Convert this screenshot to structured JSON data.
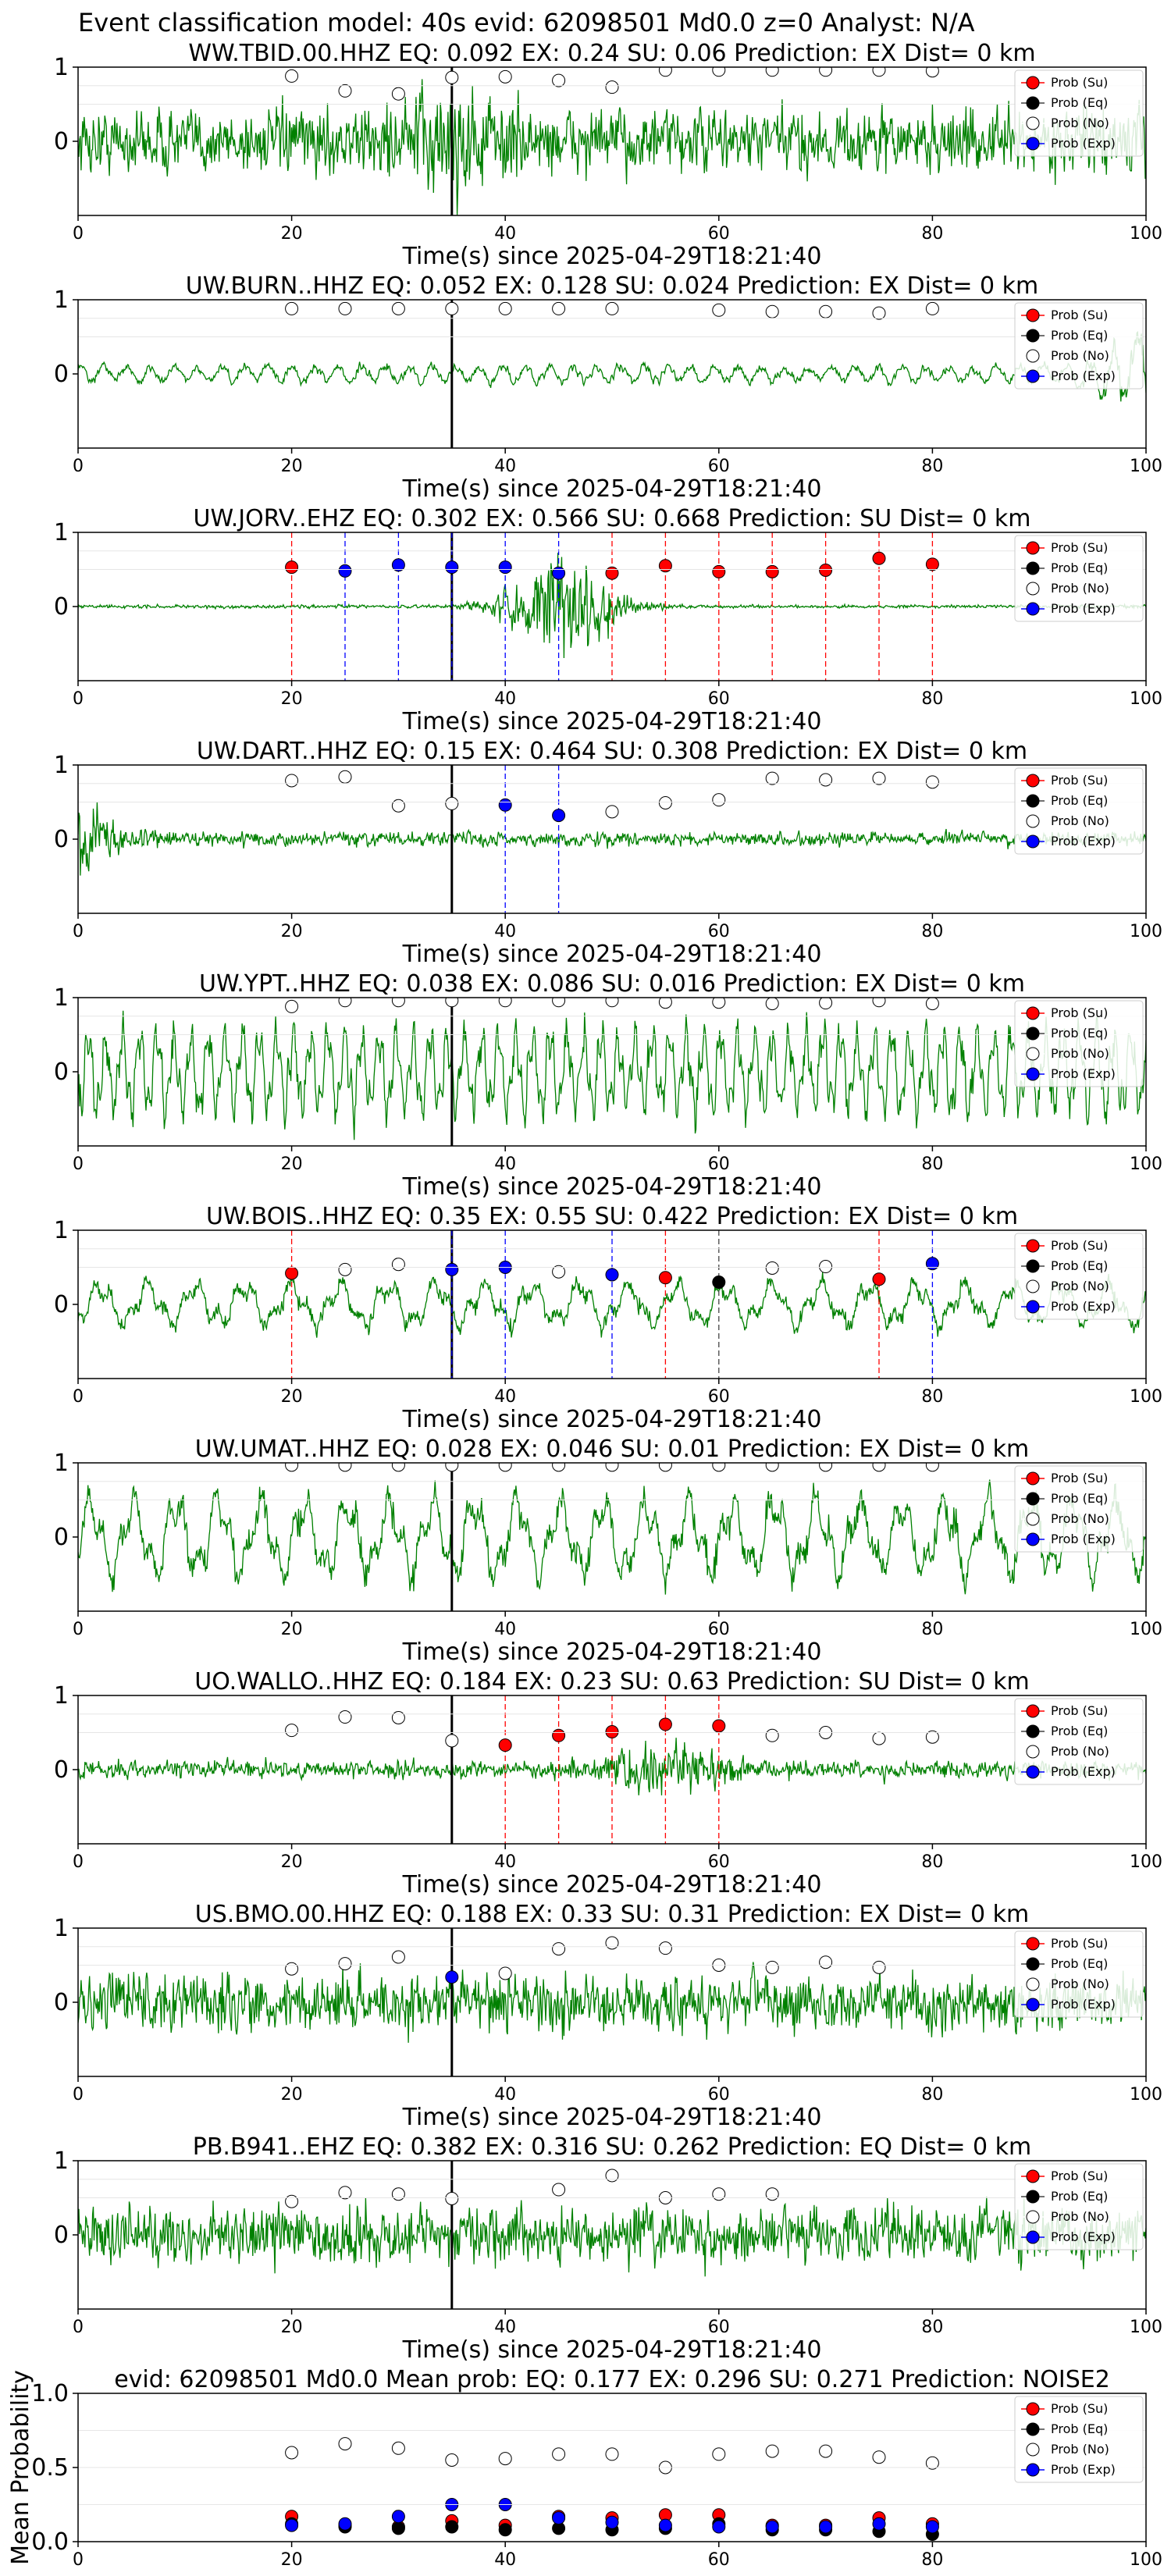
{
  "figure": {
    "suptitle": "Event classification model: 40s evid: 62098501 Md0.0 z=0 Analyst: N/A",
    "xlabel": "Time(s) since 2025-04-29T18:21:40",
    "legend": [
      "Prob (Su)",
      "Prob (Eq)",
      "Prob (No)",
      "Prob (Exp)"
    ],
    "colors": {
      "waveform": "#008000",
      "su": "#ff0000",
      "eq": "#000000",
      "no": "#ffffff",
      "exp": "#0000ff",
      "event_line": "#000000"
    }
  },
  "chart_data": [
    {
      "type": "line",
      "title": "WW.TBID.00.HHZ   EQ: 0.092  EX: 0.24  SU: 0.06   Prediction: EX    Dist= 0 km",
      "xlim": [
        0,
        100
      ],
      "ylim": [
        -1,
        1
      ],
      "xticks": [
        0,
        20,
        40,
        60,
        80,
        100
      ],
      "yticks": [
        1,
        0
      ],
      "event_line_x": 35,
      "signal": {
        "style": "noise",
        "base": 0.55,
        "burst_x": 35,
        "burst_amp": 0.5
      },
      "points": [
        {
          "x": 20,
          "y": 0.88,
          "c": "no"
        },
        {
          "x": 25,
          "y": 0.68,
          "c": "no"
        },
        {
          "x": 30,
          "y": 0.64,
          "c": "no"
        },
        {
          "x": 35,
          "y": 0.86,
          "c": "no"
        },
        {
          "x": 40,
          "y": 0.87,
          "c": "no"
        },
        {
          "x": 45,
          "y": 0.82,
          "c": "no"
        },
        {
          "x": 50,
          "y": 0.73,
          "c": "no"
        },
        {
          "x": 55,
          "y": 0.96,
          "c": "no"
        },
        {
          "x": 60,
          "y": 0.96,
          "c": "no"
        },
        {
          "x": 65,
          "y": 0.96,
          "c": "no"
        },
        {
          "x": 70,
          "y": 0.96,
          "c": "no"
        },
        {
          "x": 75,
          "y": 0.96,
          "c": "no"
        },
        {
          "x": 80,
          "y": 0.95,
          "c": "no"
        }
      ]
    },
    {
      "type": "line",
      "title": "UW.BURN..HHZ   EQ: 0.052  EX: 0.128  SU: 0.024   Prediction: EX    Dist= 0 km",
      "xlim": [
        0,
        100
      ],
      "ylim": [
        -1,
        1
      ],
      "xticks": [
        0,
        20,
        40,
        60,
        80,
        100
      ],
      "yticks": [
        1,
        0
      ],
      "event_line_x": 35,
      "signal": {
        "style": "smooth",
        "base": 0.16,
        "end_amp": 0.5
      },
      "points": [
        {
          "x": 20,
          "y": 0.88,
          "c": "no"
        },
        {
          "x": 25,
          "y": 0.88,
          "c": "no"
        },
        {
          "x": 30,
          "y": 0.88,
          "c": "no"
        },
        {
          "x": 35,
          "y": 0.88,
          "c": "no"
        },
        {
          "x": 40,
          "y": 0.88,
          "c": "no"
        },
        {
          "x": 45,
          "y": 0.88,
          "c": "no"
        },
        {
          "x": 50,
          "y": 0.88,
          "c": "no"
        },
        {
          "x": 60,
          "y": 0.86,
          "c": "no"
        },
        {
          "x": 65,
          "y": 0.84,
          "c": "no"
        },
        {
          "x": 70,
          "y": 0.84,
          "c": "no"
        },
        {
          "x": 75,
          "y": 0.82,
          "c": "no"
        },
        {
          "x": 80,
          "y": 0.88,
          "c": "no"
        }
      ]
    },
    {
      "type": "line",
      "title": "UW.JORV..EHZ   EQ: 0.302  EX: 0.566  SU: 0.668   Prediction: SU    Dist= 0 km",
      "xlim": [
        0,
        100
      ],
      "ylim": [
        -1,
        1
      ],
      "xticks": [
        0,
        20,
        40,
        60,
        80,
        100
      ],
      "yticks": [
        1,
        0
      ],
      "event_line_x": 35,
      "signal": {
        "style": "burst",
        "base": 0.03,
        "burst_x": 45,
        "burst_amp": 0.85
      },
      "points": [
        {
          "x": 20,
          "y": 0.53,
          "c": "su",
          "vline": true
        },
        {
          "x": 25,
          "y": 0.48,
          "c": "exp",
          "vline": true
        },
        {
          "x": 30,
          "y": 0.56,
          "c": "exp",
          "vline": true
        },
        {
          "x": 35,
          "y": 0.53,
          "c": "exp",
          "vline": true
        },
        {
          "x": 40,
          "y": 0.53,
          "c": "exp",
          "vline": true
        },
        {
          "x": 45,
          "y": 0.45,
          "c": "exp",
          "vline": true
        },
        {
          "x": 50,
          "y": 0.45,
          "c": "su",
          "vline": true
        },
        {
          "x": 55,
          "y": 0.55,
          "c": "su",
          "vline": true
        },
        {
          "x": 60,
          "y": 0.47,
          "c": "su",
          "vline": true
        },
        {
          "x": 65,
          "y": 0.47,
          "c": "su",
          "vline": true
        },
        {
          "x": 70,
          "y": 0.49,
          "c": "su",
          "vline": true
        },
        {
          "x": 75,
          "y": 0.65,
          "c": "su",
          "vline": true
        },
        {
          "x": 80,
          "y": 0.57,
          "c": "su",
          "vline": true
        }
      ]
    },
    {
      "type": "line",
      "title": "UW.DART..HHZ   EQ: 0.15  EX: 0.464  SU: 0.308   Prediction: EX    Dist= 0 km",
      "xlim": [
        0,
        100
      ],
      "ylim": [
        -1,
        1
      ],
      "xticks": [
        0,
        20,
        40,
        60,
        80,
        100
      ],
      "yticks": [
        1,
        0
      ],
      "event_line_x": 35,
      "signal": {
        "style": "noise",
        "base": 0.12,
        "start_amp": 0.8
      },
      "points": [
        {
          "x": 20,
          "y": 0.79,
          "c": "no"
        },
        {
          "x": 25,
          "y": 0.84,
          "c": "no"
        },
        {
          "x": 30,
          "y": 0.45,
          "c": "no"
        },
        {
          "x": 35,
          "y": 0.48,
          "c": "no"
        },
        {
          "x": 40,
          "y": 0.46,
          "c": "exp",
          "vline": true
        },
        {
          "x": 45,
          "y": 0.32,
          "c": "exp",
          "vline": true
        },
        {
          "x": 50,
          "y": 0.37,
          "c": "no"
        },
        {
          "x": 55,
          "y": 0.49,
          "c": "no"
        },
        {
          "x": 60,
          "y": 0.53,
          "c": "no"
        },
        {
          "x": 65,
          "y": 0.82,
          "c": "no"
        },
        {
          "x": 70,
          "y": 0.8,
          "c": "no"
        },
        {
          "x": 75,
          "y": 0.82,
          "c": "no"
        },
        {
          "x": 80,
          "y": 0.77,
          "c": "no"
        }
      ]
    },
    {
      "type": "line",
      "title": "UW.YPT..HHZ   EQ: 0.038  EX: 0.086  SU: 0.016   Prediction: EX    Dist= 0 km",
      "xlim": [
        0,
        100
      ],
      "ylim": [
        -1,
        1
      ],
      "xticks": [
        0,
        20,
        40,
        60,
        80,
        100
      ],
      "yticks": [
        1,
        0
      ],
      "event_line_x": 35,
      "signal": {
        "style": "wave",
        "base": 0.6,
        "period": 1.6
      },
      "points": [
        {
          "x": 20,
          "y": 0.88,
          "c": "no"
        },
        {
          "x": 25,
          "y": 0.96,
          "c": "no"
        },
        {
          "x": 30,
          "y": 0.96,
          "c": "no"
        },
        {
          "x": 35,
          "y": 0.96,
          "c": "no"
        },
        {
          "x": 40,
          "y": 0.96,
          "c": "no"
        },
        {
          "x": 45,
          "y": 0.96,
          "c": "no"
        },
        {
          "x": 50,
          "y": 0.96,
          "c": "no"
        },
        {
          "x": 55,
          "y": 0.94,
          "c": "no"
        },
        {
          "x": 60,
          "y": 0.94,
          "c": "no"
        },
        {
          "x": 65,
          "y": 0.92,
          "c": "no"
        },
        {
          "x": 70,
          "y": 0.93,
          "c": "no"
        },
        {
          "x": 75,
          "y": 0.96,
          "c": "no"
        },
        {
          "x": 80,
          "y": 0.92,
          "c": "no"
        }
      ]
    },
    {
      "type": "line",
      "title": "UW.BOIS..HHZ   EQ: 0.35  EX: 0.55  SU: 0.422   Prediction: EX    Dist= 0 km",
      "xlim": [
        0,
        100
      ],
      "ylim": [
        -1,
        1
      ],
      "xticks": [
        0,
        20,
        40,
        60,
        80,
        100
      ],
      "yticks": [
        1,
        0
      ],
      "event_line_x": 35,
      "signal": {
        "style": "wave",
        "base": 0.3,
        "period": 4.5
      },
      "points": [
        {
          "x": 20,
          "y": 0.42,
          "c": "su",
          "vline": true
        },
        {
          "x": 25,
          "y": 0.47,
          "c": "no"
        },
        {
          "x": 30,
          "y": 0.54,
          "c": "no"
        },
        {
          "x": 35,
          "y": 0.47,
          "c": "exp",
          "vline": true
        },
        {
          "x": 40,
          "y": 0.5,
          "c": "exp",
          "vline": true
        },
        {
          "x": 45,
          "y": 0.44,
          "c": "no"
        },
        {
          "x": 50,
          "y": 0.4,
          "c": "exp",
          "vline": true
        },
        {
          "x": 55,
          "y": 0.36,
          "c": "su",
          "vline": true
        },
        {
          "x": 60,
          "y": 0.3,
          "c": "eq",
          "vline": true
        },
        {
          "x": 65,
          "y": 0.49,
          "c": "no"
        },
        {
          "x": 70,
          "y": 0.51,
          "c": "no"
        },
        {
          "x": 75,
          "y": 0.34,
          "c": "su",
          "vline": true
        },
        {
          "x": 80,
          "y": 0.55,
          "c": "exp",
          "vline": true
        }
      ]
    },
    {
      "type": "line",
      "title": "UW.UMAT..HHZ   EQ: 0.028  EX: 0.046  SU: 0.01   Prediction: EX    Dist= 0 km",
      "xlim": [
        0,
        100
      ],
      "ylim": [
        -1,
        1
      ],
      "xticks": [
        0,
        20,
        40,
        60,
        80,
        100
      ],
      "yticks": [
        1,
        0
      ],
      "event_line_x": 35,
      "signal": {
        "style": "wave",
        "base": 0.55,
        "period": 4.0
      },
      "points": [
        {
          "x": 20,
          "y": 0.97,
          "c": "no"
        },
        {
          "x": 25,
          "y": 0.97,
          "c": "no"
        },
        {
          "x": 30,
          "y": 0.97,
          "c": "no"
        },
        {
          "x": 35,
          "y": 0.97,
          "c": "no"
        },
        {
          "x": 40,
          "y": 0.97,
          "c": "no"
        },
        {
          "x": 45,
          "y": 0.97,
          "c": "no"
        },
        {
          "x": 50,
          "y": 0.97,
          "c": "no"
        },
        {
          "x": 55,
          "y": 0.97,
          "c": "no"
        },
        {
          "x": 60,
          "y": 0.97,
          "c": "no"
        },
        {
          "x": 65,
          "y": 0.97,
          "c": "no"
        },
        {
          "x": 70,
          "y": 0.97,
          "c": "no"
        },
        {
          "x": 75,
          "y": 0.97,
          "c": "no"
        },
        {
          "x": 80,
          "y": 0.97,
          "c": "no"
        }
      ]
    },
    {
      "type": "line",
      "title": "UO.WALLO..HHZ   EQ: 0.184  EX: 0.23  SU: 0.63   Prediction: SU    Dist= 0 km",
      "xlim": [
        0,
        100
      ],
      "ylim": [
        -1,
        1
      ],
      "xticks": [
        0,
        20,
        40,
        60,
        80,
        100
      ],
      "yticks": [
        1,
        0
      ],
      "event_line_x": 35,
      "signal": {
        "style": "burst",
        "base": 0.15,
        "burst_x": 55,
        "burst_amp": 0.4
      },
      "points": [
        {
          "x": 20,
          "y": 0.53,
          "c": "no"
        },
        {
          "x": 25,
          "y": 0.71,
          "c": "no"
        },
        {
          "x": 30,
          "y": 0.7,
          "c": "no"
        },
        {
          "x": 35,
          "y": 0.39,
          "c": "no"
        },
        {
          "x": 40,
          "y": 0.33,
          "c": "su",
          "vline": true
        },
        {
          "x": 45,
          "y": 0.46,
          "c": "su",
          "vline": true
        },
        {
          "x": 50,
          "y": 0.51,
          "c": "su",
          "vline": true
        },
        {
          "x": 55,
          "y": 0.61,
          "c": "su",
          "vline": true
        },
        {
          "x": 60,
          "y": 0.59,
          "c": "su",
          "vline": true
        },
        {
          "x": 65,
          "y": 0.46,
          "c": "no"
        },
        {
          "x": 70,
          "y": 0.5,
          "c": "no"
        },
        {
          "x": 75,
          "y": 0.42,
          "c": "no"
        },
        {
          "x": 80,
          "y": 0.44,
          "c": "no"
        }
      ]
    },
    {
      "type": "line",
      "title": "US.BMO.00.HHZ   EQ: 0.188  EX: 0.33  SU: 0.31   Prediction: EX    Dist= 0 km",
      "xlim": [
        0,
        100
      ],
      "ylim": [
        -1,
        1
      ],
      "xticks": [
        0,
        20,
        40,
        60,
        80,
        100
      ],
      "yticks": [
        1,
        0
      ],
      "event_line_x": 35,
      "signal": {
        "style": "noise",
        "base": 0.5
      },
      "points": [
        {
          "x": 20,
          "y": 0.45,
          "c": "no"
        },
        {
          "x": 25,
          "y": 0.52,
          "c": "no"
        },
        {
          "x": 30,
          "y": 0.61,
          "c": "no"
        },
        {
          "x": 35,
          "y": 0.34,
          "c": "exp"
        },
        {
          "x": 40,
          "y": 0.39,
          "c": "no"
        },
        {
          "x": 45,
          "y": 0.72,
          "c": "no"
        },
        {
          "x": 50,
          "y": 0.8,
          "c": "no"
        },
        {
          "x": 55,
          "y": 0.73,
          "c": "no"
        },
        {
          "x": 60,
          "y": 0.5,
          "c": "no"
        },
        {
          "x": 65,
          "y": 0.47,
          "c": "no"
        },
        {
          "x": 70,
          "y": 0.54,
          "c": "no"
        },
        {
          "x": 75,
          "y": 0.47,
          "c": "no"
        }
      ]
    },
    {
      "type": "line",
      "title": "PB.B941..EHZ   EQ: 0.382  EX: 0.316  SU: 0.262   Prediction: EQ    Dist= 0 km",
      "xlim": [
        0,
        100
      ],
      "ylim": [
        -1,
        1
      ],
      "xticks": [
        0,
        20,
        40,
        60,
        80,
        100
      ],
      "yticks": [
        1,
        0
      ],
      "event_line_x": 35,
      "signal": {
        "style": "noise",
        "base": 0.5
      },
      "points": [
        {
          "x": 20,
          "y": 0.45,
          "c": "no"
        },
        {
          "x": 25,
          "y": 0.57,
          "c": "no"
        },
        {
          "x": 30,
          "y": 0.55,
          "c": "no"
        },
        {
          "x": 35,
          "y": 0.49,
          "c": "no"
        },
        {
          "x": 45,
          "y": 0.61,
          "c": "no"
        },
        {
          "x": 50,
          "y": 0.8,
          "c": "no"
        },
        {
          "x": 55,
          "y": 0.5,
          "c": "no"
        },
        {
          "x": 60,
          "y": 0.55,
          "c": "no"
        },
        {
          "x": 65,
          "y": 0.55,
          "c": "no"
        }
      ]
    },
    {
      "type": "scatter",
      "title": "evid: 62098501  Md0.0   Mean prob:   EQ: 0.177  EX: 0.296  SU: 0.271   Prediction: NOISE2",
      "ylabel": "Mean Probability",
      "xlim": [
        0,
        100
      ],
      "ylim": [
        0,
        1
      ],
      "xticks": [
        0,
        20,
        40,
        60,
        80,
        100
      ],
      "yticks": [
        1.0,
        0.5,
        0.0
      ],
      "x": [
        20,
        25,
        30,
        35,
        40,
        45,
        50,
        55,
        60,
        65,
        70,
        75,
        80
      ],
      "series": [
        {
          "name": "Prob (Su)",
          "c": "su",
          "values": [
            0.17,
            0.11,
            0.1,
            0.14,
            0.11,
            0.17,
            0.16,
            0.18,
            0.18,
            0.11,
            0.11,
            0.16,
            0.12
          ]
        },
        {
          "name": "Prob (Eq)",
          "c": "eq",
          "values": [
            0.12,
            0.1,
            0.09,
            0.1,
            0.08,
            0.09,
            0.08,
            0.09,
            0.12,
            0.08,
            0.08,
            0.07,
            0.05
          ]
        },
        {
          "name": "Prob (No)",
          "c": "no",
          "values": [
            0.6,
            0.66,
            0.63,
            0.55,
            0.56,
            0.59,
            0.59,
            0.5,
            0.59,
            0.61,
            0.61,
            0.57,
            0.53
          ]
        },
        {
          "name": "Prob (Exp)",
          "c": "exp",
          "values": [
            0.11,
            0.12,
            0.17,
            0.25,
            0.25,
            0.16,
            0.13,
            0.11,
            0.1,
            0.1,
            0.1,
            0.12,
            0.1
          ]
        }
      ]
    }
  ]
}
